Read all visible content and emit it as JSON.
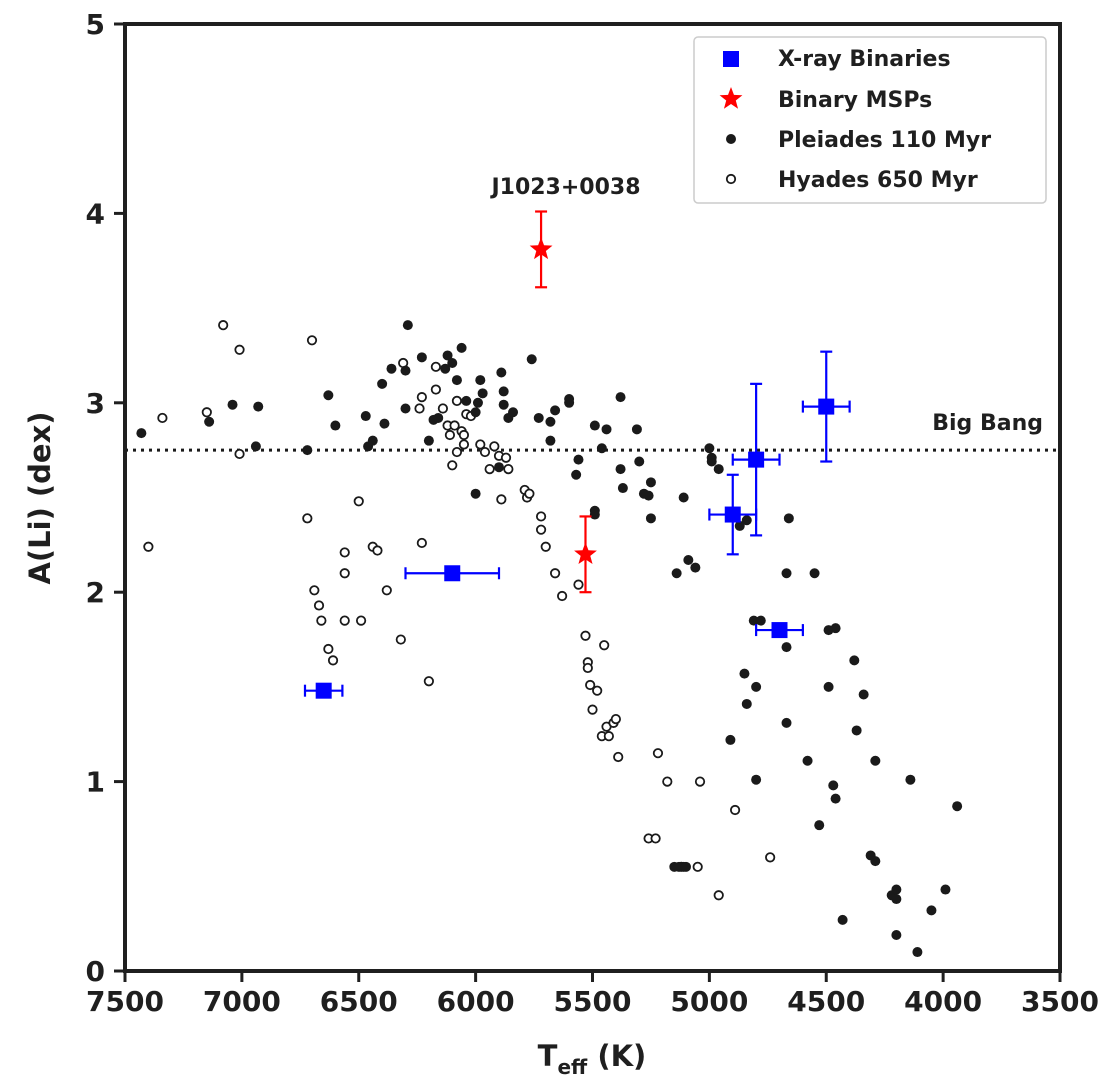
{
  "chart_data": {
    "type": "scatter",
    "title": "",
    "xlabel": "T",
    "xlabel_sub": "eff",
    "xlabel_unit": " (K)",
    "ylabel": "A(Li) (dex)",
    "xlim": [
      7500,
      3500
    ],
    "ylim": [
      0,
      5
    ],
    "x_inverted": true,
    "grid": false,
    "legend_position": "top-right",
    "xticks": [
      7500,
      7000,
      6500,
      6000,
      5500,
      5000,
      4500,
      4000,
      3500
    ],
    "yticks": [
      0,
      1,
      2,
      3,
      4,
      5
    ],
    "colors": {
      "xray": "#0000ff",
      "msp": "#ff0000",
      "pleiades": "#1a1a1a",
      "hyades": "#1a1a1a",
      "axis": "#1f1f1f"
    },
    "reference_line": {
      "label": "Big Bang",
      "y": 2.75,
      "style": "dotted"
    },
    "annotations": [
      {
        "text": "J1023+0038",
        "x": 5720,
        "y": 4.05
      }
    ],
    "series": [
      {
        "name": "X-ray Binaries",
        "marker": "square",
        "points": [
          {
            "x": 6650,
            "y": 1.48,
            "xerr": 80,
            "yerr": 0
          },
          {
            "x": 6100,
            "y": 2.1,
            "xerr": 200,
            "yerr": 0
          },
          {
            "x": 4900,
            "y": 2.41,
            "xerr": 100,
            "yerr": 0.21
          },
          {
            "x": 4800,
            "y": 2.7,
            "xerr": 100,
            "yerr": 0.4
          },
          {
            "x": 4700,
            "y": 1.8,
            "xerr": 100,
            "yerr": 0
          },
          {
            "x": 4500,
            "y": 2.98,
            "xerr": 100,
            "yerr": 0.29
          }
        ]
      },
      {
        "name": "Binary MSPs",
        "marker": "star",
        "points": [
          {
            "x": 5720,
            "y": 3.81,
            "xerr": 0,
            "yerr": 0.2
          },
          {
            "x": 5530,
            "y": 2.2,
            "xerr": 0,
            "yerr": 0.2
          }
        ]
      },
      {
        "name": "Pleiades 110 Myr",
        "marker": "filled-circle",
        "points": [
          [
            7430,
            2.84
          ],
          [
            7140,
            2.9
          ],
          [
            7040,
            2.99
          ],
          [
            6930,
            2.98
          ],
          [
            6940,
            2.77
          ],
          [
            6720,
            2.75
          ],
          [
            6630,
            3.04
          ],
          [
            6600,
            2.88
          ],
          [
            6460,
            2.77
          ],
          [
            6440,
            2.8
          ],
          [
            6470,
            2.93
          ],
          [
            6400,
            3.1
          ],
          [
            6390,
            2.89
          ],
          [
            6360,
            3.18
          ],
          [
            6300,
            3.17
          ],
          [
            6300,
            2.97
          ],
          [
            6290,
            3.41
          ],
          [
            6230,
            3.24
          ],
          [
            6200,
            2.8
          ],
          [
            6180,
            2.91
          ],
          [
            6160,
            2.92
          ],
          [
            6130,
            3.18
          ],
          [
            6120,
            3.25
          ],
          [
            6100,
            3.21
          ],
          [
            6080,
            3.12
          ],
          [
            6060,
            3.29
          ],
          [
            6040,
            3.01
          ],
          [
            6000,
            2.95
          ],
          [
            6000,
            2.52
          ],
          [
            5990,
            3.0
          ],
          [
            5980,
            3.12
          ],
          [
            5970,
            3.05
          ],
          [
            5900,
            2.66
          ],
          [
            5890,
            3.16
          ],
          [
            5880,
            3.06
          ],
          [
            5880,
            2.99
          ],
          [
            5860,
            2.92
          ],
          [
            5840,
            2.95
          ],
          [
            5760,
            3.23
          ],
          [
            5730,
            2.92
          ],
          [
            5680,
            2.9
          ],
          [
            5680,
            2.8
          ],
          [
            5660,
            2.96
          ],
          [
            5600,
            3.0
          ],
          [
            5600,
            3.02
          ],
          [
            5570,
            2.62
          ],
          [
            5560,
            2.7
          ],
          [
            5490,
            2.88
          ],
          [
            5490,
            2.43
          ],
          [
            5490,
            2.41
          ],
          [
            5460,
            2.76
          ],
          [
            5440,
            2.86
          ],
          [
            5380,
            3.03
          ],
          [
            5380,
            2.65
          ],
          [
            5370,
            2.55
          ],
          [
            5310,
            2.86
          ],
          [
            5300,
            2.69
          ],
          [
            5280,
            2.52
          ],
          [
            5260,
            2.51
          ],
          [
            5250,
            2.58
          ],
          [
            5250,
            2.39
          ],
          [
            5140,
            2.1
          ],
          [
            5110,
            2.5
          ],
          [
            5090,
            2.17
          ],
          [
            5060,
            2.13
          ],
          [
            5000,
            2.76
          ],
          [
            4990,
            2.69
          ],
          [
            4990,
            2.71
          ],
          [
            4960,
            2.65
          ],
          [
            4870,
            2.35
          ],
          [
            4810,
            1.85
          ],
          [
            4840,
            2.38
          ],
          [
            4780,
            1.85
          ],
          [
            4850,
            1.57
          ],
          [
            4800,
            1.5
          ],
          [
            4840,
            1.41
          ],
          [
            4910,
            1.22
          ],
          [
            4800,
            1.01
          ],
          [
            4670,
            2.1
          ],
          [
            4660,
            2.39
          ],
          [
            4670,
            1.71
          ],
          [
            4670,
            1.31
          ],
          [
            4580,
            1.11
          ],
          [
            4550,
            2.1
          ],
          [
            4530,
            0.77
          ],
          [
            4490,
            1.5
          ],
          [
            4490,
            1.8
          ],
          [
            4460,
            1.81
          ],
          [
            4470,
            0.98
          ],
          [
            4460,
            0.91
          ],
          [
            4430,
            0.27
          ],
          [
            4380,
            1.64
          ],
          [
            4370,
            1.27
          ],
          [
            4340,
            1.46
          ],
          [
            4310,
            0.61
          ],
          [
            4290,
            1.11
          ],
          [
            4290,
            0.58
          ],
          [
            4220,
            0.4
          ],
          [
            4200,
            0.43
          ],
          [
            4200,
            0.38
          ],
          [
            4200,
            0.19
          ],
          [
            4140,
            1.01
          ],
          [
            4110,
            0.1
          ],
          [
            4050,
            0.32
          ],
          [
            3990,
            0.43
          ],
          [
            3940,
            0.87
          ],
          [
            5150,
            0.55
          ],
          [
            5130,
            0.55
          ],
          [
            5110,
            0.55
          ],
          [
            5100,
            0.55
          ]
        ]
      },
      {
        "name": "Hyades 650 Myr",
        "marker": "open-circle",
        "points": [
          [
            7400,
            2.24
          ],
          [
            7340,
            2.92
          ],
          [
            7150,
            2.95
          ],
          [
            7080,
            3.41
          ],
          [
            7010,
            3.28
          ],
          [
            7010,
            2.73
          ],
          [
            6720,
            2.39
          ],
          [
            6700,
            3.33
          ],
          [
            6690,
            2.01
          ],
          [
            6670,
            1.93
          ],
          [
            6660,
            1.85
          ],
          [
            6630,
            1.7
          ],
          [
            6610,
            1.64
          ],
          [
            6560,
            1.85
          ],
          [
            6560,
            2.21
          ],
          [
            6560,
            2.1
          ],
          [
            6500,
            2.48
          ],
          [
            6490,
            1.85
          ],
          [
            6440,
            2.24
          ],
          [
            6420,
            2.22
          ],
          [
            6380,
            2.01
          ],
          [
            6320,
            1.75
          ],
          [
            6310,
            3.21
          ],
          [
            6240,
            2.97
          ],
          [
            6230,
            3.03
          ],
          [
            6230,
            2.26
          ],
          [
            6200,
            1.53
          ],
          [
            6170,
            3.07
          ],
          [
            6170,
            3.19
          ],
          [
            6140,
            2.97
          ],
          [
            6120,
            2.88
          ],
          [
            6110,
            2.83
          ],
          [
            6100,
            2.67
          ],
          [
            6090,
            2.88
          ],
          [
            6080,
            2.74
          ],
          [
            6080,
            3.01
          ],
          [
            6060,
            2.85
          ],
          [
            6050,
            2.83
          ],
          [
            6050,
            2.78
          ],
          [
            6040,
            2.94
          ],
          [
            6020,
            2.93
          ],
          [
            5980,
            2.78
          ],
          [
            5960,
            2.74
          ],
          [
            5940,
            2.65
          ],
          [
            5920,
            2.77
          ],
          [
            5900,
            2.72
          ],
          [
            5890,
            2.49
          ],
          [
            5870,
            2.71
          ],
          [
            5860,
            2.65
          ],
          [
            5790,
            2.54
          ],
          [
            5780,
            2.5
          ],
          [
            5770,
            2.52
          ],
          [
            5720,
            2.4
          ],
          [
            5720,
            2.33
          ],
          [
            5700,
            2.24
          ],
          [
            5660,
            2.1
          ],
          [
            5630,
            1.98
          ],
          [
            5560,
            2.04
          ],
          [
            5530,
            1.77
          ],
          [
            5520,
            1.63
          ],
          [
            5520,
            1.6
          ],
          [
            5510,
            1.51
          ],
          [
            5500,
            1.38
          ],
          [
            5480,
            1.48
          ],
          [
            5460,
            1.24
          ],
          [
            5450,
            1.72
          ],
          [
            5440,
            1.29
          ],
          [
            5430,
            1.24
          ],
          [
            5410,
            1.31
          ],
          [
            5400,
            1.33
          ],
          [
            5390,
            1.13
          ],
          [
            5260,
            0.7
          ],
          [
            5220,
            1.15
          ],
          [
            5230,
            0.7
          ],
          [
            5180,
            1.0
          ],
          [
            5120,
            0.55
          ],
          [
            5050,
            0.55
          ],
          [
            5040,
            1.0
          ],
          [
            4960,
            0.4
          ],
          [
            4890,
            0.85
          ],
          [
            4740,
            0.6
          ]
        ]
      }
    ]
  }
}
